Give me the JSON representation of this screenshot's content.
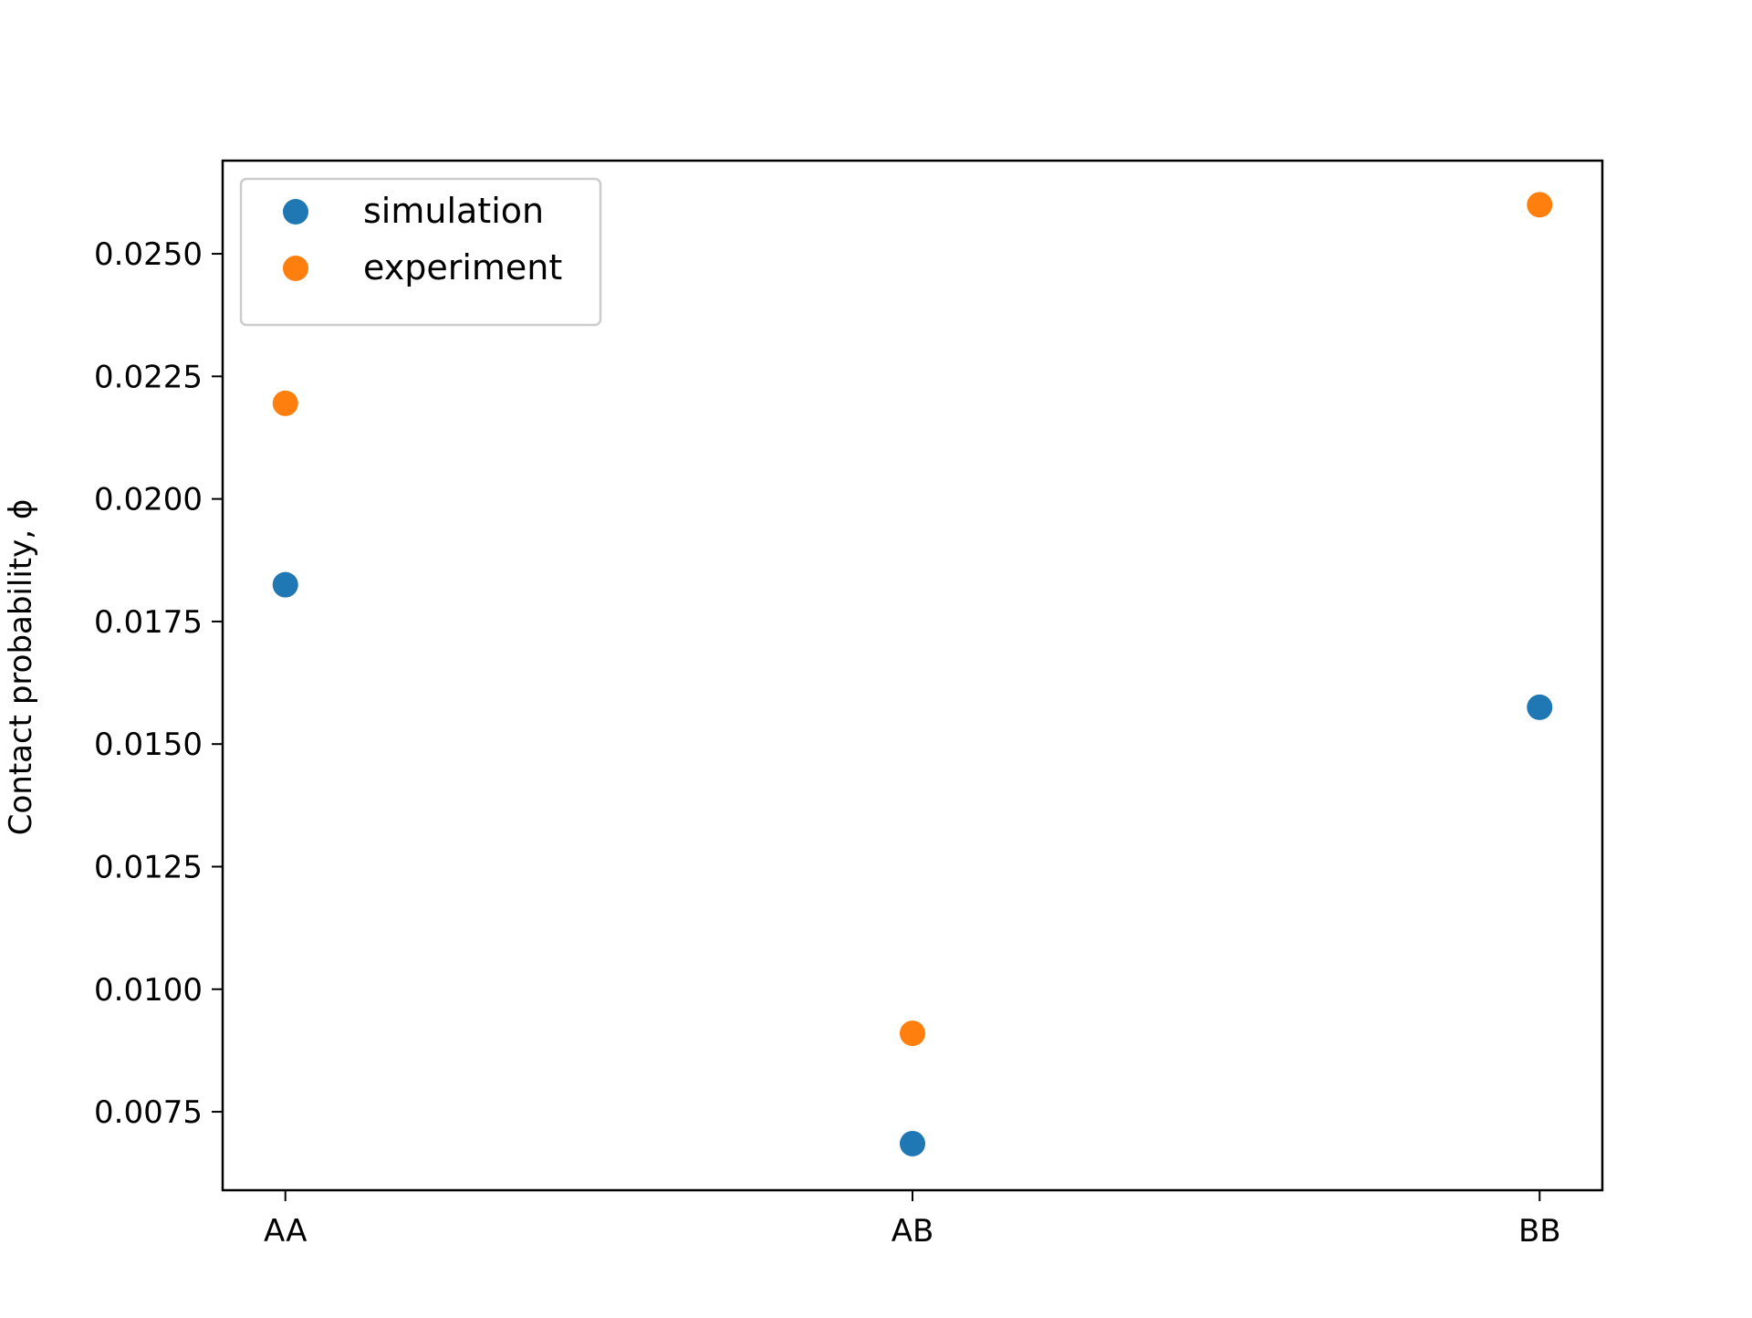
{
  "chart_data": {
    "type": "scatter",
    "categories": [
      "AA",
      "AB",
      "BB"
    ],
    "series": [
      {
        "name": "simulation",
        "color": "#1f77b4",
        "values": [
          0.01825,
          0.00685,
          0.01575
        ]
      },
      {
        "name": "experiment",
        "color": "#ff7f0e",
        "values": [
          0.02195,
          0.0091,
          0.026
        ]
      }
    ],
    "title": "",
    "xlabel": "",
    "ylabel": "Contact probability, ϕ",
    "ylim": [
      0.0059,
      0.0269
    ],
    "yticks": [
      0.0075,
      0.01,
      0.0125,
      0.015,
      0.0175,
      0.02,
      0.0225,
      0.025
    ],
    "ytick_labels": [
      "0.0075",
      "0.0100",
      "0.0125",
      "0.0150",
      "0.0175",
      "0.0200",
      "0.0225",
      "0.0250"
    ],
    "grid": false,
    "legend_position": "top-left"
  }
}
